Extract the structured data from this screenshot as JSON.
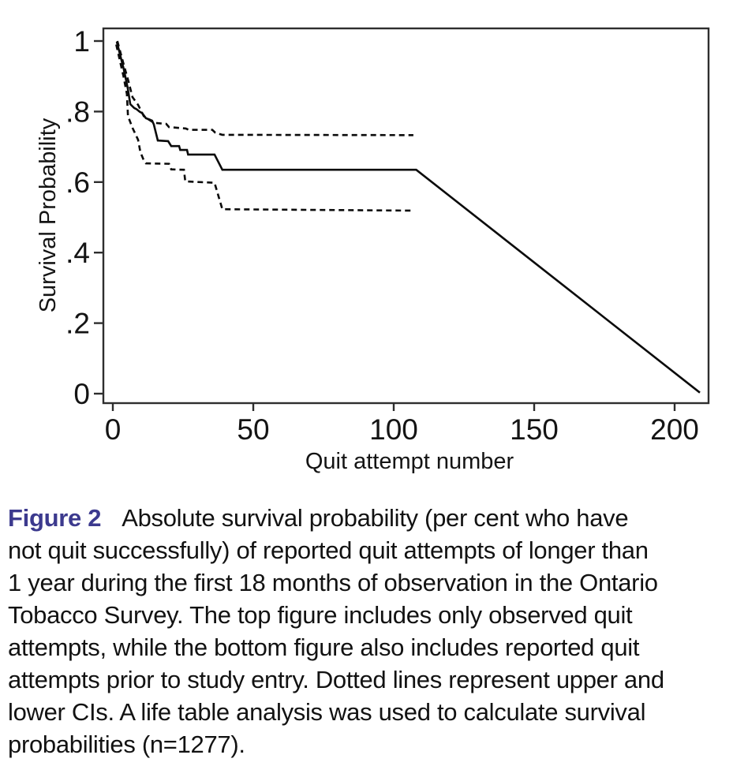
{
  "chart_data": {
    "type": "line",
    "title": "",
    "xlabel": "Quit attempt number",
    "ylabel": "Survival Probability",
    "xlim": [
      0,
      212
    ],
    "ylim": [
      0,
      1
    ],
    "grid": false,
    "legend": "none",
    "x_axis": {
      "ticks": [
        {
          "value": 0,
          "label": "0"
        },
        {
          "value": 50,
          "label": "50"
        },
        {
          "value": 100,
          "label": "100"
        },
        {
          "value": 150,
          "label": "150"
        },
        {
          "value": 200,
          "label": "200"
        }
      ]
    },
    "y_axis": {
      "ticks": [
        {
          "value": 1.0,
          "label": "1"
        },
        {
          "value": 0.8,
          "label": ".8"
        },
        {
          "value": 0.6,
          "label": ".6"
        },
        {
          "value": 0.4,
          "label": ".4"
        },
        {
          "value": 0.2,
          "label": ".2"
        },
        {
          "value": 0.0,
          "label": "0"
        }
      ]
    },
    "series": [
      {
        "id": "survival-curve",
        "name": "Absolute survival probability (life table estimate)",
        "style": "solid",
        "points": [
          [
            1.4,
            0.998
          ],
          [
            3.9,
            0.92
          ],
          [
            5.3,
            0.866
          ],
          [
            6.2,
            0.821
          ],
          [
            7.6,
            0.81
          ],
          [
            8.4,
            0.807
          ],
          [
            9.6,
            0.799
          ],
          [
            10.4,
            0.796
          ],
          [
            11.8,
            0.781
          ],
          [
            13.2,
            0.777
          ],
          [
            14,
            0.774
          ],
          [
            14.6,
            0.763
          ],
          [
            16,
            0.718
          ],
          [
            19.7,
            0.716
          ],
          [
            20.8,
            0.702
          ],
          [
            23.6,
            0.702
          ],
          [
            24,
            0.691
          ],
          [
            26.4,
            0.691
          ],
          [
            26.8,
            0.678
          ],
          [
            36.2,
            0.678
          ],
          [
            39,
            0.635
          ],
          [
            108,
            0.635
          ],
          [
            209,
            0.003
          ]
        ]
      },
      {
        "id": "upper-ci-curve",
        "name": "Upper CI (dotted)",
        "style": "dashed",
        "points": [
          [
            1.6,
            1.0
          ],
          [
            4,
            0.93
          ],
          [
            5.6,
            0.885
          ],
          [
            7,
            0.841
          ],
          [
            9,
            0.819
          ],
          [
            11,
            0.787
          ],
          [
            12.6,
            0.778
          ],
          [
            14.6,
            0.768
          ],
          [
            19,
            0.765
          ],
          [
            20,
            0.756
          ],
          [
            26,
            0.752
          ],
          [
            27,
            0.748
          ],
          [
            35.4,
            0.748
          ],
          [
            36.5,
            0.74
          ],
          [
            39,
            0.734
          ],
          [
            107,
            0.733
          ]
        ]
      },
      {
        "id": "lower-ci-curve",
        "name": "Lower CI (dotted)",
        "style": "dashed",
        "points": [
          [
            1.2,
            0.99
          ],
          [
            3.8,
            0.9
          ],
          [
            5,
            0.85
          ],
          [
            5.4,
            0.787
          ],
          [
            7,
            0.754
          ],
          [
            9,
            0.72
          ],
          [
            9.8,
            0.685
          ],
          [
            11,
            0.662
          ],
          [
            11.8,
            0.653
          ],
          [
            20,
            0.652
          ],
          [
            20.8,
            0.636
          ],
          [
            25.3,
            0.635
          ],
          [
            25.8,
            0.602
          ],
          [
            36.2,
            0.598
          ],
          [
            39,
            0.523
          ],
          [
            107,
            0.519
          ]
        ]
      }
    ]
  },
  "caption": {
    "label": "Figure 2",
    "label_color": "#3c3a8e",
    "lines": [
      "Absolute survival probability (per cent who have",
      "not quit successfully) of reported quit attempts of longer than",
      "1 year during the first 18 months of observation in the Ontario",
      "Tobacco Survey. The top figure includes only observed quit",
      "attempts, while the bottom figure also includes reported quit",
      "attempts prior to study entry. Dotted lines represent upper and",
      "lower CIs. A life table analysis was used to calculate survival",
      "probabilities (n=1277)."
    ]
  }
}
